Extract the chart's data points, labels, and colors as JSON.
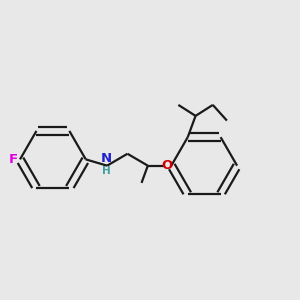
{
  "background_color": "#e8e8e8",
  "bond_color": "#1a1a1a",
  "atom_colors": {
    "F": "#e000e0",
    "N": "#2020cc",
    "H": "#40a0a0",
    "O": "#cc0000"
  },
  "figsize": [
    3.0,
    3.0
  ],
  "dpi": 100,
  "bond_lw": 1.6,
  "double_off": 0.012,
  "double_shrink": 0.06
}
